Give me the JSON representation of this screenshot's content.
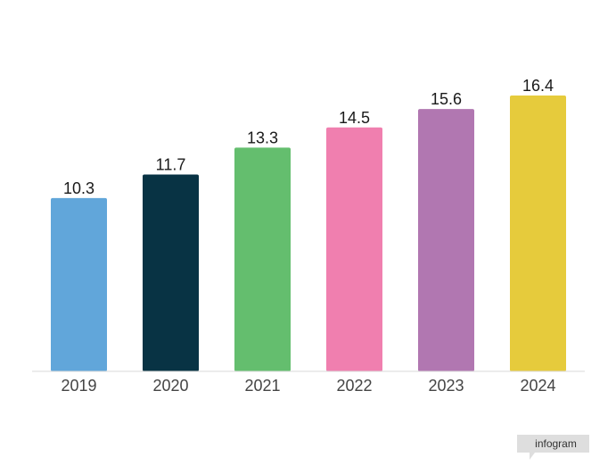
{
  "chart_data": {
    "type": "bar",
    "categories": [
      "2019",
      "2020",
      "2021",
      "2022",
      "2023",
      "2024"
    ],
    "values": [
      10.3,
      11.7,
      13.3,
      14.5,
      15.6,
      16.4
    ],
    "value_labels": [
      "10.3",
      "11.7",
      "13.3",
      "14.5",
      "15.6",
      "16.4"
    ],
    "colors": [
      "#61a6da",
      "#083344",
      "#64be6e",
      "#f07faf",
      "#b177b1",
      "#e6cb3c"
    ],
    "title": "",
    "xlabel": "",
    "ylabel": "",
    "ylim": [
      0,
      16.4
    ],
    "grid": false,
    "legend": "none"
  },
  "branding": {
    "label": "infogram",
    "bg_color": "#dedede"
  }
}
